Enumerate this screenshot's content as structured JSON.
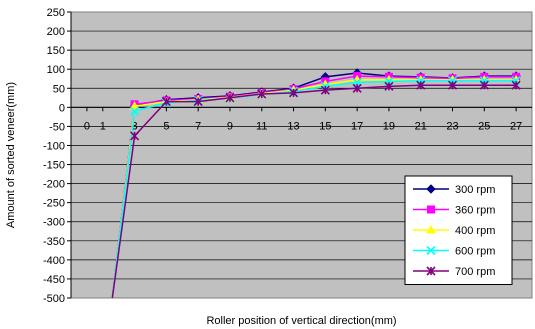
{
  "chart_data": {
    "type": "line",
    "title": "",
    "xlabel": "Roller position of vertical direction(mm)",
    "ylabel": "Amount of sorted veneer(mm)",
    "x_ticks": [
      0,
      1,
      3,
      5,
      7,
      9,
      11,
      13,
      15,
      17,
      19,
      21,
      23,
      25,
      27
    ],
    "ylim": [
      -500,
      250
    ],
    "y_step": 50,
    "grid": true,
    "legend_position": "bottom-right",
    "series": [
      {
        "name": "300 rpm",
        "color": "#000080",
        "marker": "diamond",
        "x": [
          1.6,
          3,
          5,
          7,
          9,
          11,
          13,
          15,
          17,
          19,
          21,
          23,
          25,
          27
        ],
        "y": [
          -500,
          5,
          20,
          25,
          30,
          40,
          50,
          80,
          90,
          82,
          80,
          77,
          82,
          82
        ]
      },
      {
        "name": "360 rpm",
        "color": "#FF00FF",
        "marker": "square",
        "x": [
          1.6,
          3,
          5,
          7,
          9,
          11,
          13,
          15,
          17,
          19,
          21,
          23,
          25,
          27
        ],
        "y": [
          -500,
          8,
          18,
          22,
          28,
          38,
          48,
          68,
          82,
          80,
          78,
          76,
          80,
          80
        ]
      },
      {
        "name": "400 rpm",
        "color": "#FFFF00",
        "marker": "triangle",
        "x": [
          1.6,
          3,
          5,
          7,
          9,
          11,
          13,
          15,
          17,
          19,
          21,
          23,
          25,
          27
        ],
        "y": [
          -500,
          3,
          15,
          20,
          26,
          36,
          45,
          60,
          72,
          72,
          72,
          72,
          72,
          72
        ]
      },
      {
        "name": "600 rpm",
        "color": "#00FFFF",
        "marker": "x",
        "x": [
          1.6,
          3,
          5,
          7,
          9,
          11,
          13,
          15,
          17,
          19,
          21,
          23,
          25,
          27
        ],
        "y": [
          -500,
          -10,
          12,
          18,
          24,
          34,
          42,
          55,
          65,
          68,
          70,
          70,
          70,
          70
        ]
      },
      {
        "name": "700 rpm",
        "color": "#800080",
        "marker": "star",
        "x": [
          1.6,
          3,
          5,
          7,
          9,
          11,
          13,
          15,
          17,
          19,
          21,
          23,
          25,
          27
        ],
        "y": [
          -500,
          -75,
          15,
          15,
          25,
          35,
          38,
          45,
          50,
          55,
          58,
          58,
          58,
          58
        ]
      }
    ]
  }
}
